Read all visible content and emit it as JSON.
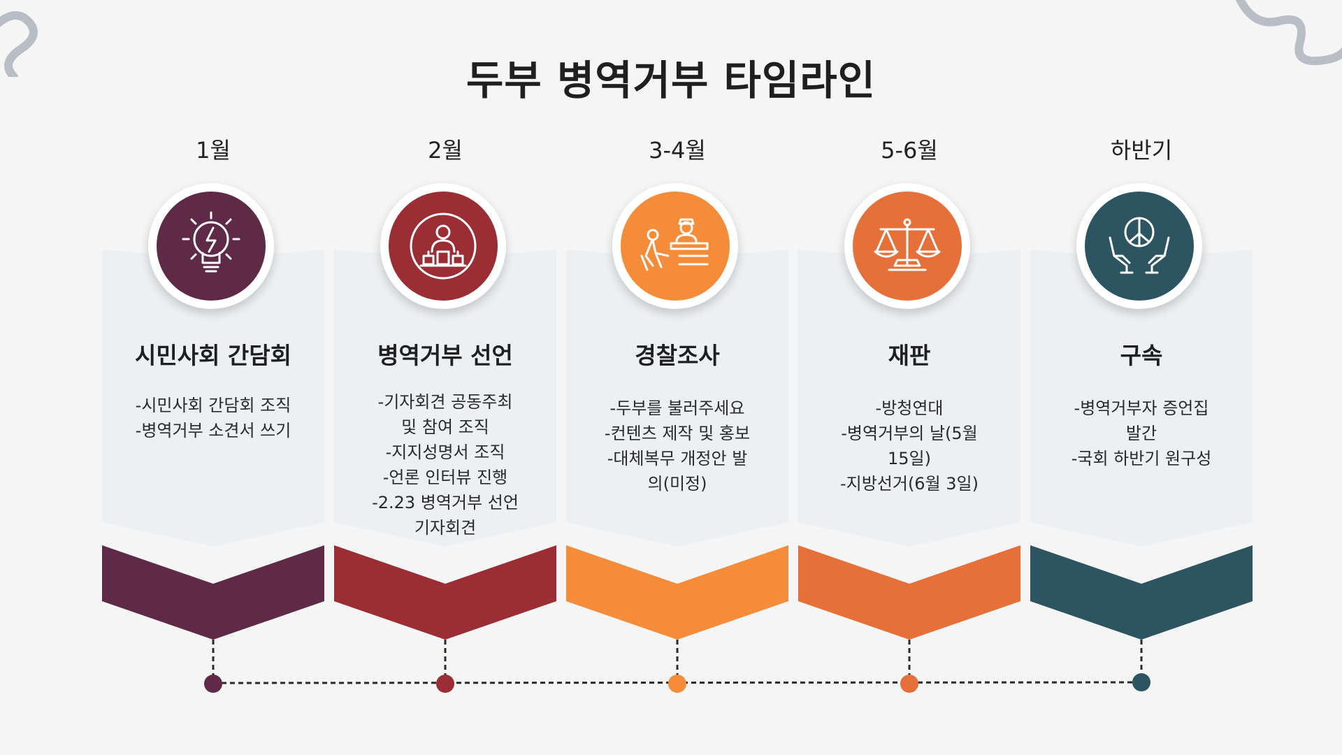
{
  "title": "두부 병역거부 타임라인",
  "colors": {
    "plum": "#5e2a48",
    "crimson": "#9b2d35",
    "orange": "#f58c3a",
    "deep_orange": "#e5703a",
    "teal": "#2d5561",
    "card": "#ecf0f3"
  },
  "steps": [
    {
      "period": "1월",
      "heading": "시민사회 간담회",
      "icon": "lightbulb-icon",
      "lines": [
        "-시민사회 간담회 조직",
        "-병역거부 소견서 쓰기"
      ]
    },
    {
      "period": "2월",
      "heading": "병역거부 선언",
      "icon": "press-conference-icon",
      "lines": [
        "-기자회견 공동주최",
        "및 참여 조직",
        "-지지성명서 조직",
        "-언론 인터뷰 진행",
        "-2.23 병역거부 선언",
        "기자회견"
      ]
    },
    {
      "period": "3-4월",
      "heading": "경찰조사",
      "icon": "interrogation-icon",
      "lines": [
        "-두부를 불러주세요",
        "-컨텐츠 제작 및 홍보",
        "-대체복무 개정안 발",
        "의(미정)"
      ]
    },
    {
      "period": "5-6월",
      "heading": "재판",
      "icon": "scales-icon",
      "lines": [
        "-방청연대",
        "-병역거부의 날(5월",
        "15일)",
        "-지방선거(6월 3일)"
      ]
    },
    {
      "period": "하반기",
      "heading": "구속",
      "icon": "peace-hands-icon",
      "lines": [
        "-병역거부자 증언집",
        "발간",
        "-국회 하반기 원구성"
      ]
    }
  ]
}
